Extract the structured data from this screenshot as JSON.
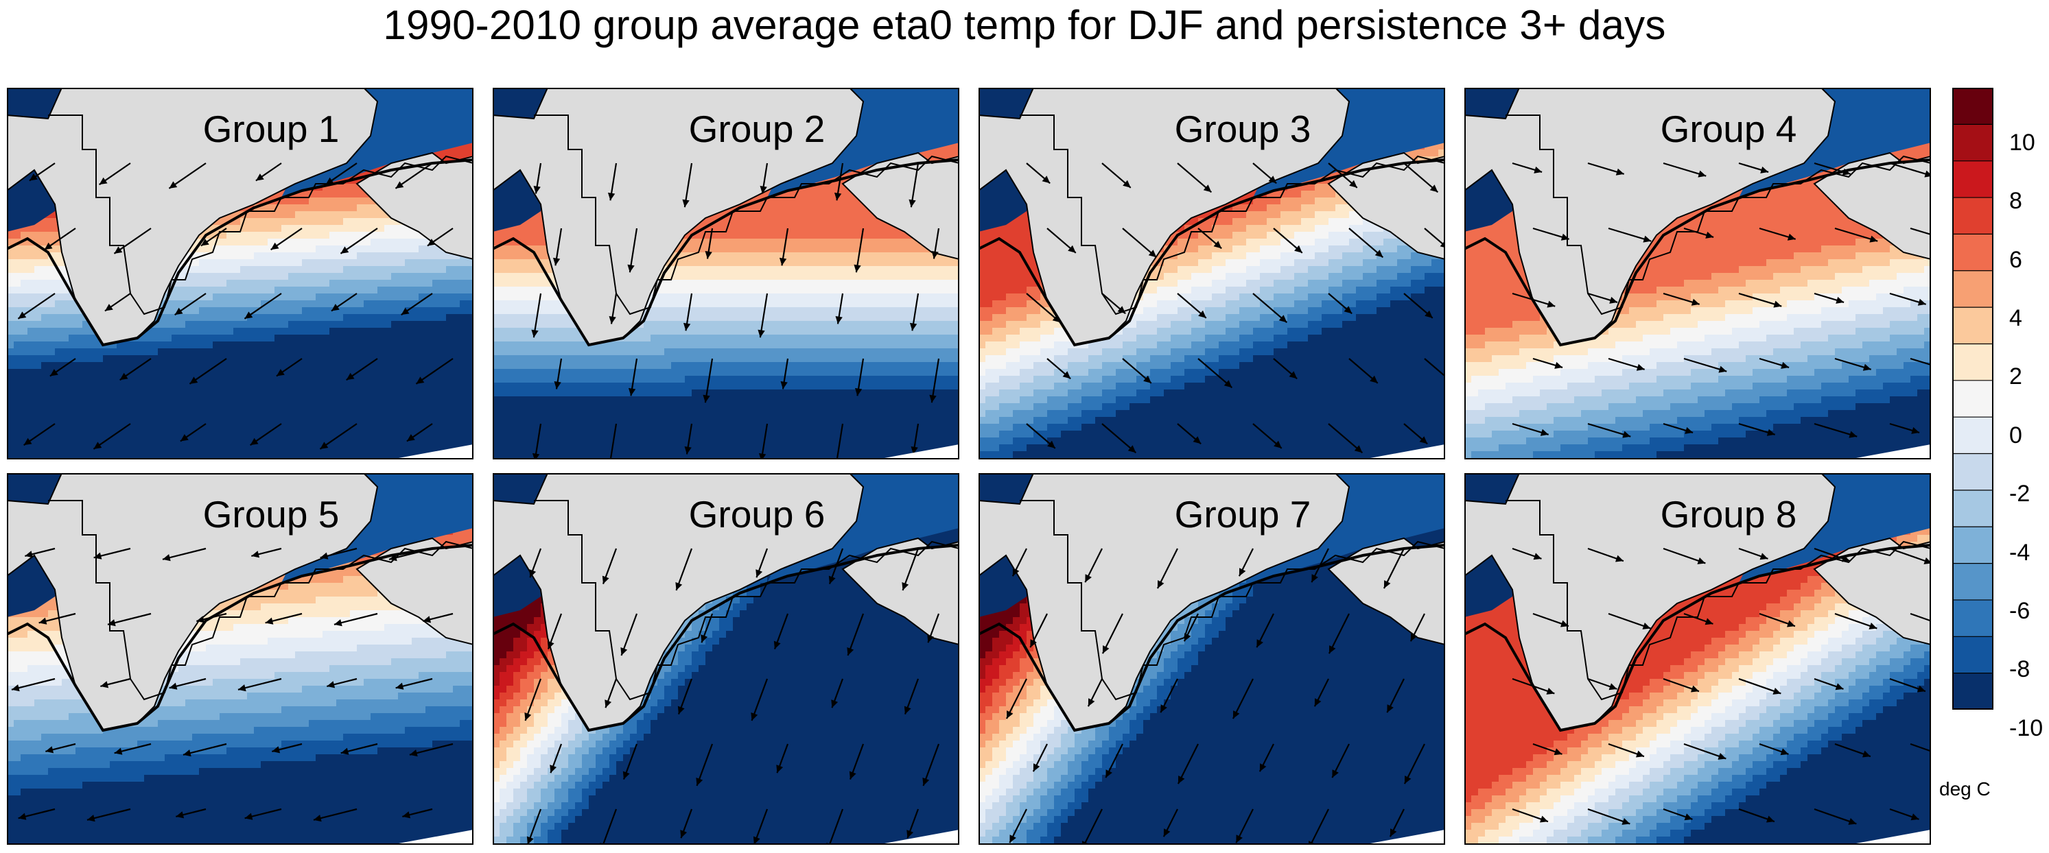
{
  "title": "1990-2010 group average eta0 temp for DJF and persistence 3+ days",
  "colorbar": {
    "units": "deg C",
    "tick_labels": [
      "10",
      "8",
      "6",
      "4",
      "2",
      "0",
      "-2",
      "-4",
      "-6",
      "-8",
      "-10"
    ],
    "colors": [
      "#67000d",
      "#a50f15",
      "#cb181d",
      "#e0402f",
      "#f06d4e",
      "#f7a073",
      "#fbc99c",
      "#fde9cc",
      "#f5f5f5",
      "#e4ecf6",
      "#c8d9ec",
      "#a6c8e3",
      "#7eb1d8",
      "#5695c9",
      "#2f76b8",
      "#13569f",
      "#08306b"
    ]
  },
  "panels": [
    {
      "label": "Group 1",
      "ox": 0.37,
      "oy": 0.48,
      "ang": -14,
      "gain": 1.5,
      "warm": 5.2,
      "wind": [
        -0.8,
        0.55
      ],
      "warmHigh": 6
    },
    {
      "label": "Group 2",
      "ox": 0.4,
      "oy": 0.55,
      "ang": -8,
      "gain": 1.3,
      "warm": 5.0,
      "wind": [
        -0.15,
        0.95
      ],
      "warmHigh": 4
    },
    {
      "label": "Group 3",
      "ox": 0.37,
      "oy": 0.58,
      "ang": -30,
      "gain": 1.6,
      "warm": 6.5,
      "wind": [
        0.7,
        0.6
      ],
      "warmHigh": 6
    },
    {
      "label": "Group 4",
      "ox": 0.62,
      "oy": 0.6,
      "ang": -20,
      "gain": 1.2,
      "warm": 3.0,
      "wind": [
        1,
        0.3
      ],
      "warmHigh": 4
    },
    {
      "label": "Group 5",
      "ox": 0.14,
      "oy": 0.55,
      "ang": -16,
      "gain": 1.1,
      "warm": 5.2,
      "wind": [
        -1,
        0.25
      ],
      "warmHigh": 6
    },
    {
      "label": "Group 6",
      "ox": 0.21,
      "oy": 0.6,
      "ang": -55,
      "gain": 2.1,
      "warm": 8.5,
      "wind": [
        -0.35,
        0.95
      ],
      "warmHigh": 9
    },
    {
      "label": "Group 7",
      "ox": 0.2,
      "oy": 0.62,
      "ang": -55,
      "gain": 2.0,
      "warm": 8.7,
      "wind": [
        -0.45,
        0.9
      ],
      "warmHigh": 10
    },
    {
      "label": "Group 8",
      "ox": 0.52,
      "oy": 0.62,
      "ang": -40,
      "gain": 1.6,
      "warm": 5.5,
      "wind": [
        1,
        0.35
      ],
      "warmHigh": 6
    }
  ]
}
